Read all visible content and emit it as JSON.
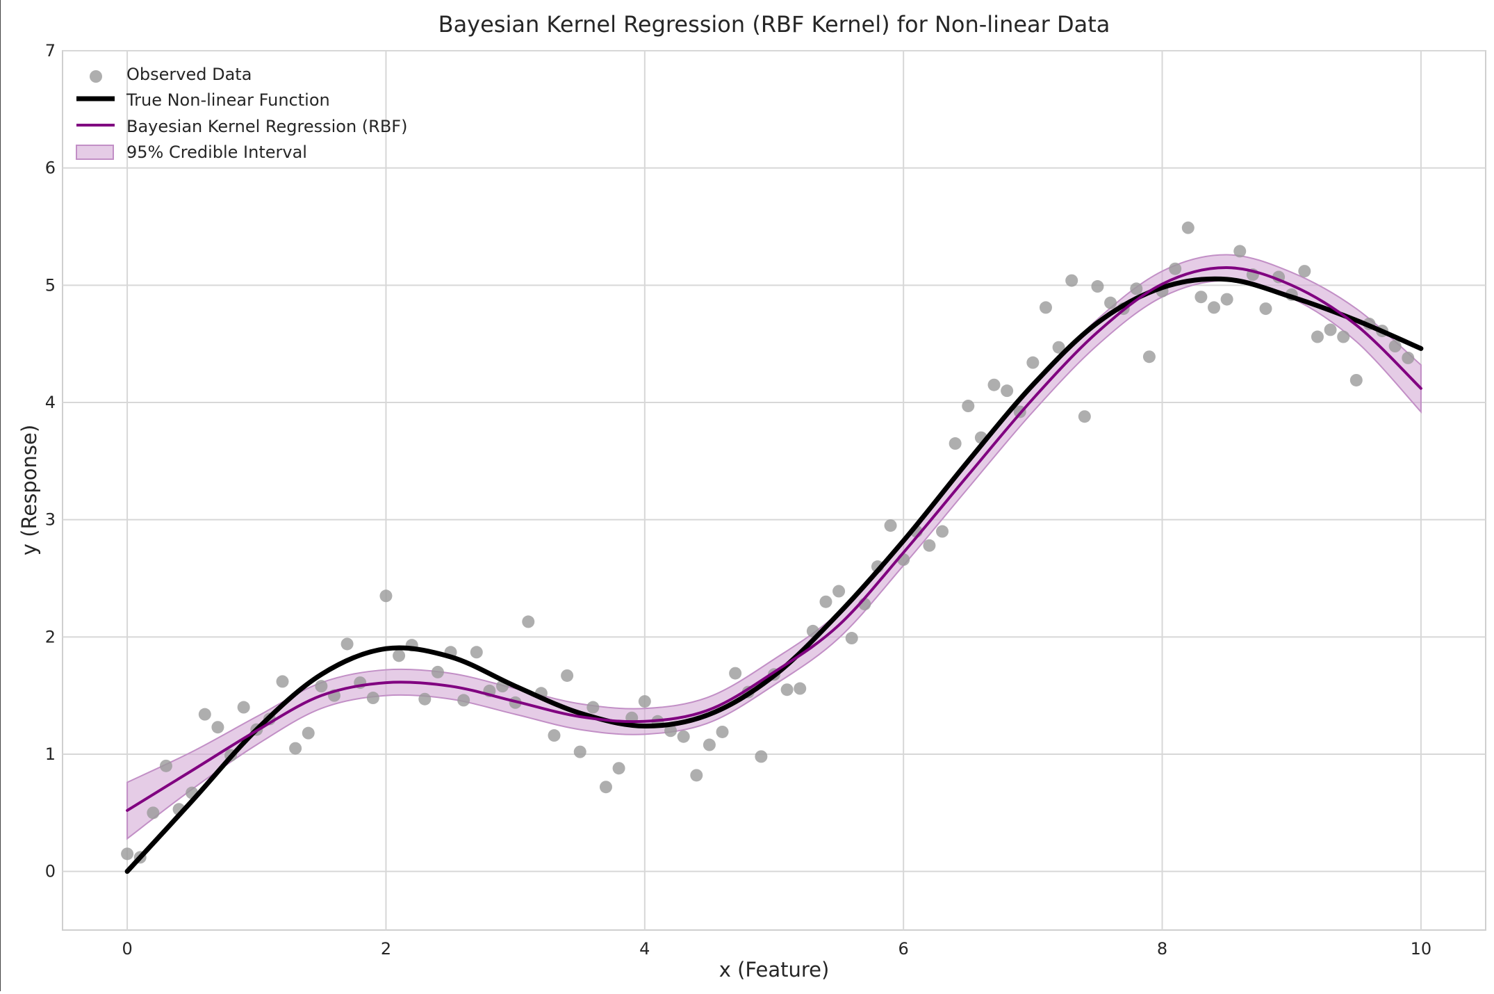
{
  "chart_data": {
    "type": "scatter",
    "title": "Bayesian Kernel Regression (RBF Kernel) for Non-linear Data",
    "xlabel": "x (Feature)",
    "ylabel": "y (Response)",
    "xlim": [
      -0.5,
      10.5
    ],
    "ylim": [
      -0.5,
      7
    ],
    "xticks": [
      0,
      2,
      4,
      6,
      8,
      10
    ],
    "yticks": [
      0,
      1,
      2,
      3,
      4,
      5,
      6,
      7
    ],
    "grid": true,
    "legend_position": "top-left",
    "colors": {
      "observed": "#9a9a9a",
      "true": "#000000",
      "bkr": "#800080",
      "interval": "#cfa3d2"
    },
    "legend": [
      {
        "label": "Observed Data",
        "kind": "marker"
      },
      {
        "label": "True Non-linear Function",
        "kind": "line-black"
      },
      {
        "label": "Bayesian Kernel Regression (RBF)",
        "kind": "line-purple"
      },
      {
        "label": "95% Credible Interval",
        "kind": "patch"
      }
    ],
    "observed": [
      [
        0.0,
        0.15
      ],
      [
        0.1,
        0.12
      ],
      [
        0.2,
        0.5
      ],
      [
        0.3,
        0.9
      ],
      [
        0.4,
        0.53
      ],
      [
        0.5,
        0.67
      ],
      [
        0.6,
        1.34
      ],
      [
        0.7,
        1.23
      ],
      [
        0.8,
        0.99
      ],
      [
        0.9,
        1.4
      ],
      [
        1.0,
        1.21
      ],
      [
        1.1,
        1.3
      ],
      [
        1.2,
        1.62
      ],
      [
        1.3,
        1.05
      ],
      [
        1.4,
        1.18
      ],
      [
        1.5,
        1.58
      ],
      [
        1.6,
        1.5
      ],
      [
        1.7,
        1.94
      ],
      [
        1.8,
        1.61
      ],
      [
        1.9,
        1.48
      ],
      [
        2.0,
        2.35
      ],
      [
        2.1,
        1.84
      ],
      [
        2.2,
        1.93
      ],
      [
        2.3,
        1.47
      ],
      [
        2.4,
        1.7
      ],
      [
        2.5,
        1.87
      ],
      [
        2.6,
        1.46
      ],
      [
        2.7,
        1.87
      ],
      [
        2.8,
        1.54
      ],
      [
        2.9,
        1.58
      ],
      [
        3.0,
        1.44
      ],
      [
        3.1,
        2.13
      ],
      [
        3.2,
        1.52
      ],
      [
        3.3,
        1.16
      ],
      [
        3.4,
        1.67
      ],
      [
        3.5,
        1.02
      ],
      [
        3.6,
        1.4
      ],
      [
        3.7,
        0.72
      ],
      [
        3.8,
        0.88
      ],
      [
        3.9,
        1.31
      ],
      [
        4.0,
        1.45
      ],
      [
        4.1,
        1.28
      ],
      [
        4.2,
        1.2
      ],
      [
        4.3,
        1.15
      ],
      [
        4.4,
        0.82
      ],
      [
        4.5,
        1.08
      ],
      [
        4.6,
        1.19
      ],
      [
        4.7,
        1.69
      ],
      [
        4.8,
        1.53
      ],
      [
        4.9,
        0.98
      ],
      [
        5.0,
        1.68
      ],
      [
        5.1,
        1.55
      ],
      [
        5.2,
        1.56
      ],
      [
        5.3,
        2.05
      ],
      [
        5.4,
        2.3
      ],
      [
        5.5,
        2.39
      ],
      [
        5.6,
        1.99
      ],
      [
        5.7,
        2.28
      ],
      [
        5.8,
        2.6
      ],
      [
        5.9,
        2.95
      ],
      [
        6.0,
        2.66
      ],
      [
        6.1,
        2.9
      ],
      [
        6.2,
        2.78
      ],
      [
        6.3,
        2.9
      ],
      [
        6.4,
        3.65
      ],
      [
        6.5,
        3.97
      ],
      [
        6.6,
        3.7
      ],
      [
        6.7,
        4.15
      ],
      [
        6.8,
        4.1
      ],
      [
        6.9,
        3.92
      ],
      [
        7.0,
        4.34
      ],
      [
        7.1,
        4.81
      ],
      [
        7.2,
        4.47
      ],
      [
        7.3,
        5.04
      ],
      [
        7.4,
        3.88
      ],
      [
        7.5,
        4.99
      ],
      [
        7.6,
        4.85
      ],
      [
        7.7,
        4.8
      ],
      [
        7.8,
        4.97
      ],
      [
        7.9,
        4.39
      ],
      [
        8.0,
        4.95
      ],
      [
        8.1,
        5.14
      ],
      [
        8.2,
        5.49
      ],
      [
        8.3,
        4.9
      ],
      [
        8.4,
        4.81
      ],
      [
        8.5,
        4.88
      ],
      [
        8.6,
        5.29
      ],
      [
        8.7,
        5.09
      ],
      [
        8.8,
        4.8
      ],
      [
        8.9,
        5.07
      ],
      [
        9.0,
        4.92
      ],
      [
        9.1,
        5.12
      ],
      [
        9.2,
        4.56
      ],
      [
        9.3,
        4.62
      ],
      [
        9.4,
        4.56
      ],
      [
        9.5,
        4.19
      ],
      [
        9.6,
        4.67
      ],
      [
        9.7,
        4.61
      ],
      [
        9.8,
        4.48
      ],
      [
        9.9,
        4.38
      ]
    ],
    "true_function": [
      [
        0.0,
        0.0
      ],
      [
        0.5,
        0.6
      ],
      [
        1.0,
        1.21
      ],
      [
        1.5,
        1.68
      ],
      [
        2.0,
        1.9
      ],
      [
        2.5,
        1.83
      ],
      [
        3.0,
        1.58
      ],
      [
        3.5,
        1.35
      ],
      [
        4.0,
        1.24
      ],
      [
        4.5,
        1.34
      ],
      [
        5.0,
        1.67
      ],
      [
        5.5,
        2.2
      ],
      [
        6.0,
        2.82
      ],
      [
        6.5,
        3.5
      ],
      [
        7.0,
        4.15
      ],
      [
        7.5,
        4.68
      ],
      [
        8.0,
        4.98
      ],
      [
        8.5,
        5.05
      ],
      [
        9.0,
        4.9
      ],
      [
        9.5,
        4.7
      ],
      [
        10.0,
        4.46
      ]
    ],
    "bkr_mean": [
      [
        0.0,
        0.52
      ],
      [
        0.5,
        0.86
      ],
      [
        1.0,
        1.2
      ],
      [
        1.5,
        1.5
      ],
      [
        2.0,
        1.61
      ],
      [
        2.5,
        1.58
      ],
      [
        3.0,
        1.45
      ],
      [
        3.5,
        1.32
      ],
      [
        4.0,
        1.28
      ],
      [
        4.5,
        1.38
      ],
      [
        5.0,
        1.7
      ],
      [
        5.5,
        2.1
      ],
      [
        6.0,
        2.72
      ],
      [
        6.5,
        3.38
      ],
      [
        7.0,
        4.03
      ],
      [
        7.5,
        4.6
      ],
      [
        8.0,
        5.01
      ],
      [
        8.5,
        5.15
      ],
      [
        9.0,
        5.0
      ],
      [
        9.5,
        4.66
      ],
      [
        10.0,
        4.12
      ]
    ],
    "interval_halfwidth": [
      0.24,
      0.16,
      0.12,
      0.11,
      0.11,
      0.11,
      0.11,
      0.11,
      0.11,
      0.11,
      0.11,
      0.11,
      0.11,
      0.11,
      0.11,
      0.11,
      0.11,
      0.11,
      0.11,
      0.14,
      0.2
    ]
  }
}
